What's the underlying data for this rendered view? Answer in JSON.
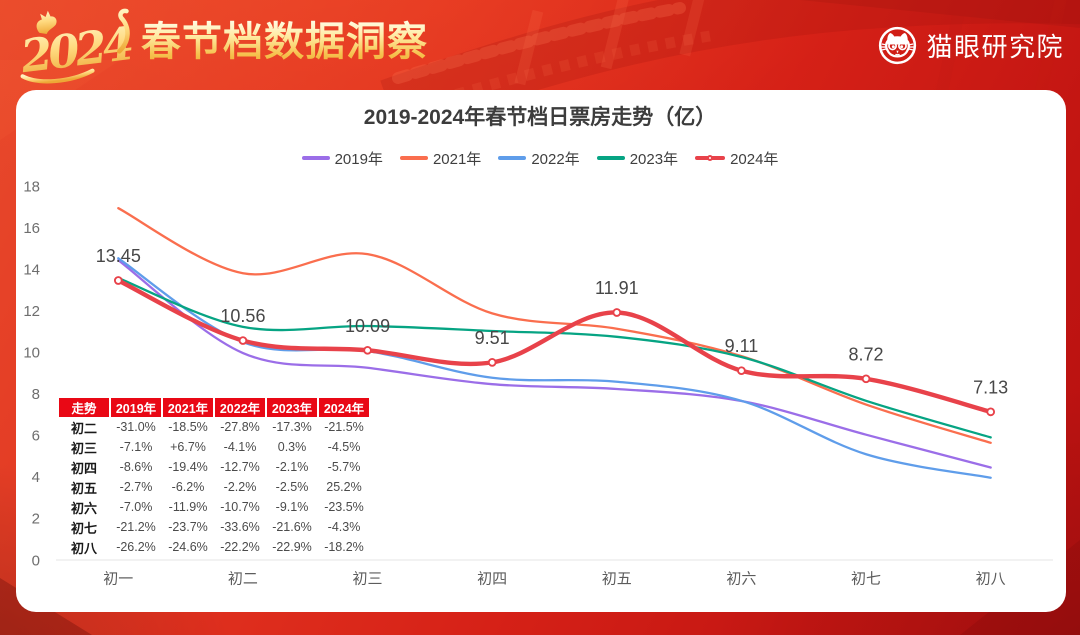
{
  "header": {
    "logo_year": "2024",
    "title": "春节档数据洞察",
    "brand_name": "猫眼研究院"
  },
  "chart_data": {
    "type": "line",
    "title": "2019-2024年春节档日票房走势（亿）",
    "categories": [
      "初一",
      "初二",
      "初三",
      "初四",
      "初五",
      "初六",
      "初七",
      "初八"
    ],
    "y_axis": {
      "min": 0,
      "max": 18,
      "step": 2
    },
    "grid": false,
    "smooth": true,
    "legend_position": "top",
    "series": [
      {
        "name": "2019年",
        "color": "#9b6ee8",
        "width": 2.3,
        "values": [
          14.43,
          9.96,
          9.25,
          8.46,
          8.23,
          7.65,
          6.03,
          4.45
        ]
      },
      {
        "name": "2021年",
        "color": "#fa6e4e",
        "width": 2.3,
        "values": [
          16.93,
          13.8,
          14.72,
          11.87,
          11.13,
          9.81,
          7.48,
          5.64
        ]
      },
      {
        "name": "2022年",
        "color": "#5f9dea",
        "width": 2.3,
        "values": [
          14.52,
          10.48,
          10.05,
          8.77,
          8.58,
          7.66,
          5.09,
          3.96
        ]
      },
      {
        "name": "2023年",
        "color": "#06a483",
        "width": 2.3,
        "values": [
          13.57,
          11.22,
          11.26,
          11.02,
          10.74,
          9.77,
          7.66,
          5.9
        ]
      },
      {
        "name": "2024年",
        "color": "#e8424a",
        "width": 4.4,
        "highlight": true,
        "values": [
          13.45,
          10.56,
          10.09,
          9.51,
          11.91,
          9.11,
          8.72,
          7.13
        ],
        "point_labels": [
          "13.45",
          "10.56",
          "10.09",
          "9.51",
          "11.91",
          "9.11",
          "8.72",
          "7.13"
        ]
      }
    ]
  },
  "table": {
    "header": [
      "走势",
      "2019年",
      "2021年",
      "2022年",
      "2023年",
      "2024年"
    ],
    "rows": [
      {
        "label": "初二",
        "values": [
          "-31.0%",
          "-18.5%",
          "-27.8%",
          "-17.3%",
          "-21.5%"
        ]
      },
      {
        "label": "初三",
        "values": [
          "-7.1%",
          "+6.7%",
          "-4.1%",
          "0.3%",
          "-4.5%"
        ]
      },
      {
        "label": "初四",
        "values": [
          "-8.6%",
          "-19.4%",
          "-12.7%",
          "-2.1%",
          "-5.7%"
        ]
      },
      {
        "label": "初五",
        "values": [
          "-2.7%",
          "-6.2%",
          "-2.2%",
          "-2.5%",
          "25.2%"
        ]
      },
      {
        "label": "初六",
        "values": [
          "-7.0%",
          "-11.9%",
          "-10.7%",
          "-9.1%",
          "-23.5%"
        ]
      },
      {
        "label": "初七",
        "values": [
          "-21.2%",
          "-23.7%",
          "-33.6%",
          "-21.6%",
          "-4.3%"
        ]
      },
      {
        "label": "初八",
        "values": [
          "-26.2%",
          "-24.6%",
          "-22.2%",
          "-22.9%",
          "-18.2%"
        ]
      }
    ]
  },
  "colors": {
    "background_red": "#d62117",
    "table_header_red": "#e90815",
    "card_white": "#ffffff",
    "gold_text": "#f6c14e",
    "axis_label_gray": "#6e6e6e",
    "title_gray": "#3c3c3c"
  }
}
